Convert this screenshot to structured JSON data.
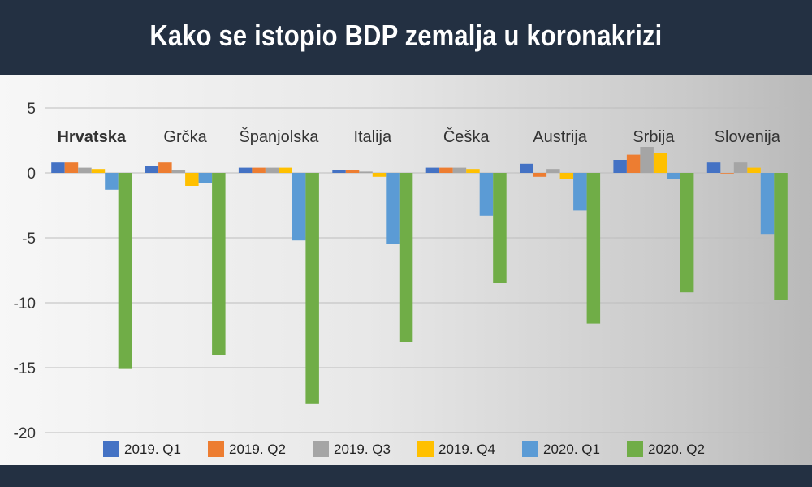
{
  "header": {
    "title": "Kako se istopio BDP zemalja u koronakrizi"
  },
  "chart_data": {
    "type": "bar",
    "title": "Kako se istopio BDP zemalja u koronakrizi",
    "categories": [
      "Hrvatska",
      "Grčka",
      "Španjolska",
      "Italija",
      "Češka",
      "Austrija",
      "Srbija",
      "Slovenija"
    ],
    "highlighted_category": "Hrvatska",
    "y_ticks": [
      "5",
      "0",
      "-5",
      "-10",
      "-15",
      "-20"
    ],
    "ylim": [
      -20,
      5
    ],
    "grid": true,
    "legend_position": "bottom",
    "series": [
      {
        "name": "2019. Q1",
        "color": "#4472C4",
        "values": [
          0.8,
          0.5,
          0.4,
          0.2,
          0.4,
          0.7,
          1.0,
          0.8
        ]
      },
      {
        "name": "2019. Q2",
        "color": "#ED7D31",
        "values": [
          0.8,
          0.8,
          0.4,
          0.2,
          0.4,
          -0.3,
          1.4,
          0.0
        ]
      },
      {
        "name": "2019. Q3",
        "color": "#A5A5A5",
        "values": [
          0.4,
          0.2,
          0.4,
          0.1,
          0.4,
          0.3,
          2.0,
          0.8
        ]
      },
      {
        "name": "2019. Q4",
        "color": "#FFC000",
        "values": [
          0.3,
          -1.0,
          0.4,
          -0.3,
          0.3,
          -0.5,
          1.5,
          0.4
        ]
      },
      {
        "name": "2020. Q1",
        "color": "#5B9BD5",
        "values": [
          -1.3,
          -0.8,
          -5.2,
          -5.5,
          -3.3,
          -2.9,
          -0.5,
          -4.7
        ]
      },
      {
        "name": "2020. Q2",
        "color": "#70AD47",
        "values": [
          -15.1,
          -14.0,
          -17.8,
          -13.0,
          -8.5,
          -11.6,
          -9.2,
          -9.8
        ]
      }
    ]
  }
}
